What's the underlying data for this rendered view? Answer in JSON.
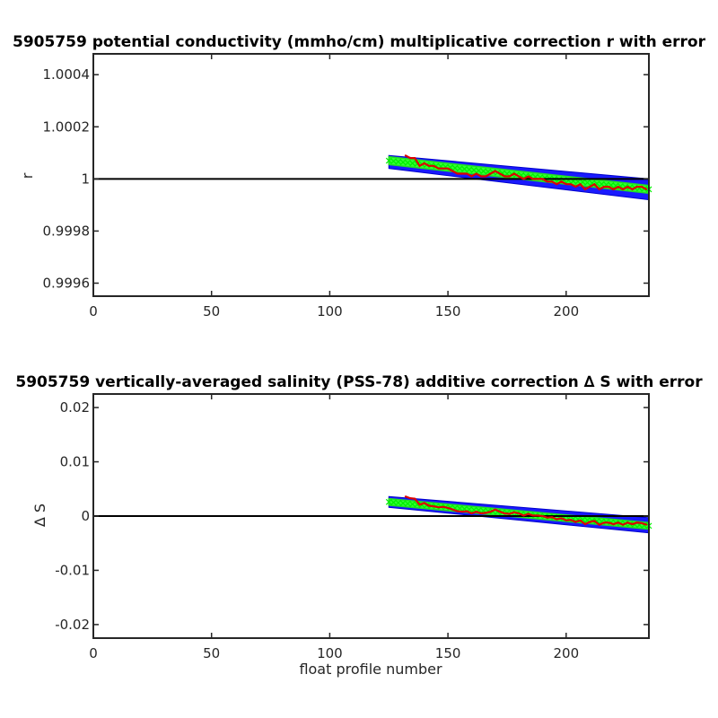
{
  "chart_data": [
    {
      "type": "line",
      "title": "5905759 potential conductivity (mmho/cm) multiplicative correction r with error",
      "xlabel": "",
      "ylabel": "r",
      "xlim": [
        0,
        235
      ],
      "ylim": [
        0.99955,
        1.00048
      ],
      "x_ticks": [
        0,
        50,
        100,
        150,
        200
      ],
      "x_tick_labels": [
        "0",
        "50",
        "100",
        "150",
        "200"
      ],
      "y_ticks": [
        0.9996,
        0.9998,
        1.0,
        1.0002,
        1.0004
      ],
      "y_tick_labels": [
        "0.9996",
        "0.9998",
        "1",
        "1.0002",
        "1.0004"
      ],
      "reference_line": 1.0,
      "fit_line": {
        "x": [
          125,
          235
        ],
        "y": [
          1.00007,
          0.99996
        ]
      },
      "error_envelope": {
        "x": [
          125,
          235
        ],
        "upper": [
          1.00009,
          1.0
        ],
        "lower": [
          1.00004,
          0.99992
        ]
      },
      "series": [
        {
          "color": "#dd0000",
          "x": [
            132,
            134,
            136,
            138,
            140,
            142,
            144,
            146,
            148,
            150,
            152,
            154,
            156,
            158,
            160,
            162,
            164,
            166,
            168,
            170,
            172,
            174,
            176,
            178,
            180,
            182,
            184,
            186,
            188,
            190,
            192,
            194,
            196,
            198,
            200,
            202,
            204,
            206,
            208,
            210,
            212,
            214,
            216,
            218,
            220,
            222,
            224,
            226,
            228,
            230,
            232,
            234
          ],
          "y": [
            1.00009,
            1.00008,
            1.00008,
            1.00005,
            1.00006,
            1.00005,
            1.00005,
            1.00004,
            1.00004,
            1.00004,
            1.00003,
            1.00002,
            1.00002,
            1.00002,
            1.00001,
            1.00002,
            1.00001,
            1.00001,
            1.00002,
            1.00003,
            1.00002,
            1.00001,
            1.00001,
            1.00002,
            1.00001,
            1.0,
            1.00001,
            1.0,
            1.0,
            1.0,
            0.99999,
            0.99999,
            0.99998,
            0.99999,
            0.99998,
            0.99998,
            0.99997,
            0.99998,
            0.99996,
            0.99997,
            0.99998,
            0.99996,
            0.99997,
            0.99997,
            0.99996,
            0.99997,
            0.99996,
            0.99997,
            0.99996,
            0.99997,
            0.99997,
            0.99996
          ]
        }
      ]
    },
    {
      "type": "line",
      "title": "5905759 vertically-averaged salinity (PSS-78) additive correction ∆ S with error",
      "xlabel": "float profile number",
      "ylabel": "∆ S",
      "xlim": [
        0,
        235
      ],
      "ylim": [
        -0.0225,
        0.0225
      ],
      "x_ticks": [
        0,
        50,
        100,
        150,
        200
      ],
      "x_tick_labels": [
        "0",
        "50",
        "100",
        "150",
        "200"
      ],
      "y_ticks": [
        -0.02,
        -0.01,
        0,
        0.01,
        0.02
      ],
      "y_tick_labels": [
        "-0.02",
        "-0.01",
        "0",
        "0.01",
        "0.02"
      ],
      "reference_line": 0,
      "fit_line": {
        "x": [
          125,
          235
        ],
        "y": [
          0.0026,
          -0.0018
        ]
      },
      "error_envelope": {
        "x": [
          125,
          235
        ],
        "upper": [
          0.0036,
          -0.0003
        ],
        "lower": [
          0.0016,
          -0.0031
        ]
      },
      "series": [
        {
          "color": "#dd0000",
          "x": [
            132,
            134,
            136,
            138,
            140,
            142,
            144,
            146,
            148,
            150,
            152,
            154,
            156,
            158,
            160,
            162,
            164,
            166,
            168,
            170,
            172,
            174,
            176,
            178,
            180,
            182,
            184,
            186,
            188,
            190,
            192,
            194,
            196,
            198,
            200,
            202,
            204,
            206,
            208,
            210,
            212,
            214,
            216,
            218,
            220,
            222,
            224,
            226,
            228,
            230,
            232,
            234
          ],
          "y": [
            0.0036,
            0.0033,
            0.0032,
            0.0021,
            0.0024,
            0.0019,
            0.0018,
            0.0016,
            0.0017,
            0.0015,
            0.0012,
            0.0009,
            0.0008,
            0.0009,
            0.0005,
            0.0008,
            0.0005,
            0.0006,
            0.0008,
            0.0012,
            0.0008,
            0.0005,
            0.0004,
            0.0007,
            0.0005,
            0.0001,
            0.0004,
            0.0001,
            0.0001,
            0.0,
            -0.0003,
            -0.0002,
            -0.0006,
            -0.0004,
            -0.0008,
            -0.0007,
            -0.0011,
            -0.0008,
            -0.0015,
            -0.0011,
            -0.0009,
            -0.0016,
            -0.0012,
            -0.0012,
            -0.0015,
            -0.0012,
            -0.0016,
            -0.0012,
            -0.0015,
            -0.0012,
            -0.0013,
            -0.0016
          ]
        }
      ]
    }
  ]
}
